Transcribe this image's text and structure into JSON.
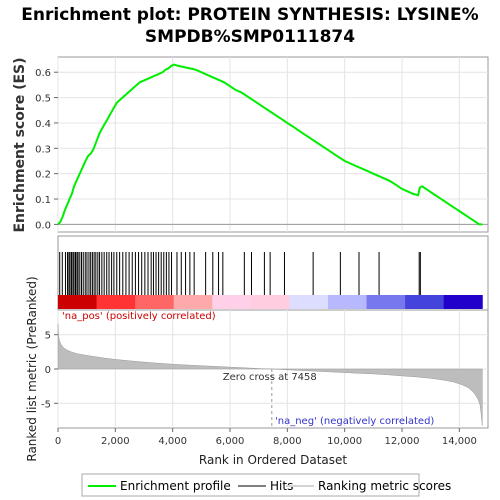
{
  "chart_data": {
    "type": "line",
    "title_line1": "Enrichment plot: PROTEIN SYNTHESIS: LYSINE%",
    "title_line2": "SMPDB%SMP0111874",
    "es_panel": {
      "ylabel": "Enrichment score (ES)",
      "ylim": [
        -0.03,
        0.66
      ],
      "yticks": [
        "0.0",
        "0.1",
        "0.2",
        "0.3",
        "0.4",
        "0.5",
        "0.6"
      ],
      "ytick_values": [
        0.0,
        0.1,
        0.2,
        0.3,
        0.4,
        0.5,
        0.6
      ],
      "series": [
        {
          "name": "Enrichment profile",
          "color": "#00ee00",
          "x": [
            0,
            80,
            160,
            250,
            330,
            400,
            480,
            560,
            640,
            720,
            800,
            880,
            960,
            1050,
            1150,
            1250,
            1350,
            1450,
            1550,
            1650,
            1750,
            1850,
            1950,
            2050,
            2150,
            2250,
            2350,
            2450,
            2550,
            2650,
            2750,
            2850,
            2950,
            3050,
            3150,
            3250,
            3350,
            3450,
            3550,
            3650,
            3750,
            3850,
            3950,
            4050,
            4200,
            4400,
            4600,
            4800,
            5000,
            5200,
            5400,
            5600,
            5800,
            6000,
            6200,
            6400,
            6600,
            6800,
            7000,
            7200,
            7400,
            7600,
            7800,
            8000,
            8200,
            8400,
            8600,
            8800,
            9000,
            9200,
            9400,
            9600,
            9800,
            10000,
            10200,
            10400,
            10600,
            10800,
            11000,
            11200,
            11400,
            11600,
            11800,
            12000,
            12200,
            12400,
            12560,
            12620,
            12700,
            12900,
            13100,
            13300,
            13500,
            13700,
            13900,
            14100,
            14300,
            14500,
            14700,
            14800
          ],
          "y": [
            0.0,
            0.01,
            0.03,
            0.06,
            0.08,
            0.1,
            0.12,
            0.15,
            0.17,
            0.19,
            0.21,
            0.23,
            0.25,
            0.27,
            0.28,
            0.3,
            0.33,
            0.36,
            0.38,
            0.4,
            0.42,
            0.44,
            0.46,
            0.48,
            0.49,
            0.5,
            0.51,
            0.52,
            0.53,
            0.54,
            0.55,
            0.56,
            0.565,
            0.57,
            0.575,
            0.58,
            0.585,
            0.59,
            0.595,
            0.6,
            0.61,
            0.615,
            0.625,
            0.63,
            0.625,
            0.62,
            0.615,
            0.61,
            0.6,
            0.59,
            0.58,
            0.57,
            0.56,
            0.545,
            0.53,
            0.52,
            0.505,
            0.49,
            0.475,
            0.46,
            0.445,
            0.43,
            0.415,
            0.4,
            0.385,
            0.37,
            0.355,
            0.34,
            0.325,
            0.31,
            0.295,
            0.28,
            0.265,
            0.25,
            0.24,
            0.23,
            0.22,
            0.21,
            0.2,
            0.19,
            0.18,
            0.17,
            0.155,
            0.14,
            0.13,
            0.12,
            0.115,
            0.145,
            0.15,
            0.135,
            0.12,
            0.105,
            0.09,
            0.075,
            0.06,
            0.045,
            0.03,
            0.015,
            0.0,
            0.0
          ]
        }
      ]
    },
    "hits_panel": {
      "hit_positions": [
        60,
        150,
        260,
        330,
        380,
        420,
        470,
        520,
        560,
        610,
        660,
        700,
        760,
        820,
        880,
        950,
        1010,
        1080,
        1140,
        1200,
        1260,
        1320,
        1390,
        1450,
        1530,
        1610,
        1700,
        1780,
        1870,
        1950,
        2050,
        2150,
        2260,
        2370,
        2480,
        2590,
        2700,
        2810,
        2920,
        3030,
        3140,
        3250,
        3330,
        3420,
        3510,
        3600,
        3690,
        3780,
        3870,
        3960,
        4150,
        4300,
        4450,
        4600,
        4750,
        5150,
        5400,
        5600,
        5750,
        6500,
        6750,
        7200,
        7400,
        7900,
        8900,
        9850,
        10500,
        11200,
        12600,
        12640
      ],
      "colorbar": [
        "#cc0000",
        "#ff3333",
        "#ff6666",
        "#ffaaaa",
        "#ffd0e8",
        "#ffcce0",
        "#ddddff",
        "#b8b8ff",
        "#7777ee",
        "#4444dd",
        "#2200cc"
      ]
    },
    "metric_panel": {
      "ylabel": "Ranked list metric (PreRanked)",
      "ylim": [
        -8.6,
        8.6
      ],
      "yticks": [
        "5",
        "0",
        "-5"
      ],
      "ytick_values": [
        5,
        0,
        -5
      ],
      "metric_x": [
        0,
        20,
        60,
        120,
        200,
        300,
        450,
        650,
        900,
        1200,
        1600,
        2000,
        2500,
        3000,
        3500,
        4000,
        4500,
        5000,
        5500,
        6000,
        6500,
        7000,
        7458,
        8000,
        8500,
        9000,
        9500,
        10000,
        10500,
        11000,
        11500,
        12000,
        12500,
        13000,
        13500,
        13800,
        14100,
        14300,
        14450,
        14550,
        14650,
        14720,
        14760,
        14800
      ],
      "metric_y": [
        6.6,
        4.8,
        4.0,
        3.5,
        3.1,
        2.8,
        2.5,
        2.25,
        2.05,
        1.85,
        1.6,
        1.4,
        1.2,
        1.0,
        0.85,
        0.7,
        0.58,
        0.48,
        0.38,
        0.28,
        0.18,
        0.08,
        0.0,
        -0.12,
        -0.22,
        -0.32,
        -0.42,
        -0.52,
        -0.62,
        -0.72,
        -0.85,
        -1.0,
        -1.15,
        -1.35,
        -1.65,
        -1.9,
        -2.3,
        -2.7,
        -3.2,
        -3.7,
        -4.4,
        -5.2,
        -6.5,
        -8.3
      ],
      "zero_cross_label": "Zero cross at 7458",
      "zero_cross": 7458,
      "pos_label": "'na_pos' (positively correlated)",
      "neg_label": "'na_neg' (negatively correlated)"
    },
    "x_axis": {
      "label": "Rank in Ordered Dataset",
      "xlim": [
        0,
        15000
      ],
      "ticks": [
        "0",
        "2,000",
        "4,000",
        "6,000",
        "8,000",
        "10,000",
        "12,000",
        "14,000"
      ],
      "tick_values": [
        0,
        2000,
        4000,
        6000,
        8000,
        10000,
        12000,
        14000
      ]
    },
    "legend": {
      "items": [
        {
          "label": "Enrichment profile",
          "color": "#00ee00"
        },
        {
          "label": "Hits",
          "color": "#808080"
        },
        {
          "label": "Ranking metric scores",
          "color": "#d3d3d3"
        }
      ]
    }
  }
}
